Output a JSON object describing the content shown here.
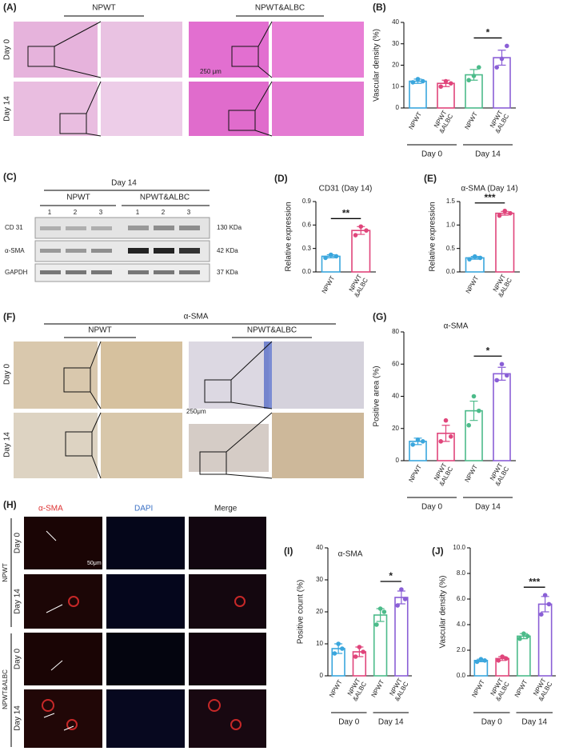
{
  "panels": {
    "A": {
      "label": "(A)",
      "columns": [
        "NPWT",
        "NPWT&ALBC"
      ],
      "rows": [
        "Day 0",
        "Day 14"
      ],
      "scale": "250 μm"
    },
    "C": {
      "label": "(C)",
      "title": "Day 14",
      "groups": [
        "NPWT",
        "NPWT&ALBC"
      ],
      "lanes": [
        "1",
        "2",
        "3",
        "1",
        "2",
        "3"
      ],
      "bands": [
        "CD 31",
        "α-SMA",
        "GAPDH"
      ],
      "sizes": [
        "130 KDa",
        "42 KDa",
        "37 KDa"
      ]
    },
    "F": {
      "label": "(F)",
      "title": "α-SMA",
      "columns": [
        "NPWT",
        "NPWT&ALBC"
      ],
      "rows": [
        "Day 0",
        "Day 14"
      ],
      "scale": "250μm"
    },
    "H": {
      "label": "(H)",
      "columns": [
        "α-SMA",
        "DAPI",
        "Merge"
      ],
      "groups": [
        "NPWT",
        "NPWT&ALBC"
      ],
      "rows": [
        "Day 0",
        "Day 14",
        "Day 0",
        "Day 14"
      ],
      "scale": "50μm"
    }
  },
  "chart_data": [
    {
      "type": "bar",
      "panel": "(B)",
      "y_label": "Vascular density (%)",
      "categories": [
        "NPWT",
        "NPWT &ALBC",
        "NPWT",
        "NPWT &ALBC"
      ],
      "groups": [
        "Day 0",
        "Day 14"
      ],
      "values": [
        12.5,
        11.5,
        15.5,
        23.5
      ],
      "errors": [
        1,
        1.5,
        2.5,
        3.5
      ],
      "points": [
        [
          12,
          13.5,
          12.5
        ],
        [
          10,
          12.5,
          11.5
        ],
        [
          13,
          15,
          19
        ],
        [
          19,
          23,
          29
        ]
      ],
      "colors": [
        "#3aa6dd",
        "#e0457b",
        "#4cbb8a",
        "#8a5fd6"
      ],
      "ylim": [
        0,
        40
      ],
      "yticks": [
        0,
        10,
        20,
        30,
        40
      ],
      "significance": "*"
    },
    {
      "type": "bar",
      "panel": "(D)",
      "title": "CD31 (Day 14)",
      "y_label": "Relative expression",
      "categories": [
        "NPWT",
        "NPWT &ALBC"
      ],
      "values": [
        0.2,
        0.53
      ],
      "errors": [
        0.02,
        0.05
      ],
      "points": [
        [
          0.18,
          0.22,
          0.2
        ],
        [
          0.47,
          0.58,
          0.53
        ]
      ],
      "colors": [
        "#3aa6dd",
        "#e0457b"
      ],
      "ylim": [
        0,
        0.9
      ],
      "yticks": [
        {
          "value": 0,
          "label": "0.0"
        },
        0.3,
        0.6,
        0.9
      ],
      "significance": "**"
    },
    {
      "type": "bar",
      "panel": "(E)",
      "title": "α-SMA (Day 14)",
      "y_label": "Relative expression",
      "categories": [
        "NPWT",
        "NPWT &ALBC"
      ],
      "values": [
        0.3,
        1.25
      ],
      "errors": [
        0.03,
        0.04
      ],
      "points": [
        [
          0.27,
          0.33,
          0.3
        ],
        [
          1.2,
          1.3,
          1.25
        ]
      ],
      "colors": [
        "#3aa6dd",
        "#e0457b"
      ],
      "ylim": [
        0,
        1.5
      ],
      "yticks": [
        {
          "value": 0,
          "label": "0.0"
        },
        0.5,
        {
          "value": 1,
          "label": "1.0"
        },
        1.5
      ],
      "significance": "***"
    },
    {
      "type": "bar",
      "panel": "(G)",
      "title": "α-SMA",
      "y_label": "Positive area (%)",
      "categories": [
        "NPWT",
        "NPWT &ALBC",
        "NPWT",
        "NPWT &ALBC"
      ],
      "groups": [
        "Day 0",
        "Day 14"
      ],
      "values": [
        12,
        17,
        31,
        54
      ],
      "errors": [
        2,
        5,
        6,
        4
      ],
      "points": [
        [
          10,
          13,
          12
        ],
        [
          12,
          25,
          15
        ],
        [
          22,
          40,
          31
        ],
        [
          50,
          60,
          53
        ]
      ],
      "colors": [
        "#3aa6dd",
        "#e0457b",
        "#4cbb8a",
        "#8a5fd6"
      ],
      "ylim": [
        0,
        80
      ],
      "yticks": [
        0,
        20,
        40,
        60,
        80
      ],
      "significance": "*"
    },
    {
      "type": "bar",
      "panel": "(I)",
      "title": "α-SMA",
      "y_label": "Positive count (%)",
      "categories": [
        "NPWT",
        "NPWT &ALBC",
        "NPWT",
        "NPWT &ALBC"
      ],
      "groups": [
        "Day 0",
        "Day 14"
      ],
      "values": [
        8.5,
        7.5,
        19,
        24.5
      ],
      "errors": [
        1.5,
        1.5,
        2,
        2
      ],
      "points": [
        [
          7,
          10,
          8.5
        ],
        [
          6,
          9,
          7.5
        ],
        [
          16,
          21,
          20
        ],
        [
          22,
          27,
          24
        ]
      ],
      "colors": [
        "#3aa6dd",
        "#e0457b",
        "#4cbb8a",
        "#8a5fd6"
      ],
      "ylim": [
        0,
        40
      ],
      "yticks": [
        0,
        10,
        20,
        30,
        40
      ],
      "significance": "*"
    },
    {
      "type": "bar",
      "panel": "(J)",
      "y_label": "Vascular density (%)",
      "categories": [
        "NPWT",
        "NPWT &ALBC",
        "NPWT",
        "NPWT &ALBC"
      ],
      "groups": [
        "Day 0",
        "Day 14"
      ],
      "values": [
        1.2,
        1.35,
        3.1,
        5.6
      ],
      "errors": [
        0.1,
        0.15,
        0.2,
        0.6
      ],
      "points": [
        [
          1.1,
          1.3,
          1.2
        ],
        [
          1.2,
          1.5,
          1.35
        ],
        [
          2.9,
          3.3,
          3.1
        ],
        [
          4.8,
          6.3,
          5.6
        ]
      ],
      "colors": [
        "#3aa6dd",
        "#e0457b",
        "#4cbb8a",
        "#8a5fd6"
      ],
      "ylim": [
        0,
        10
      ],
      "yticks": [
        {
          "value": 0,
          "label": "0.0"
        },
        {
          "value": 2,
          "label": "2.0"
        },
        {
          "value": 4,
          "label": "4.0"
        },
        {
          "value": 6,
          "label": "6.0"
        },
        {
          "value": 8,
          "label": "8.0"
        },
        {
          "value": 10,
          "label": "10.0"
        }
      ],
      "significance": "***"
    }
  ]
}
